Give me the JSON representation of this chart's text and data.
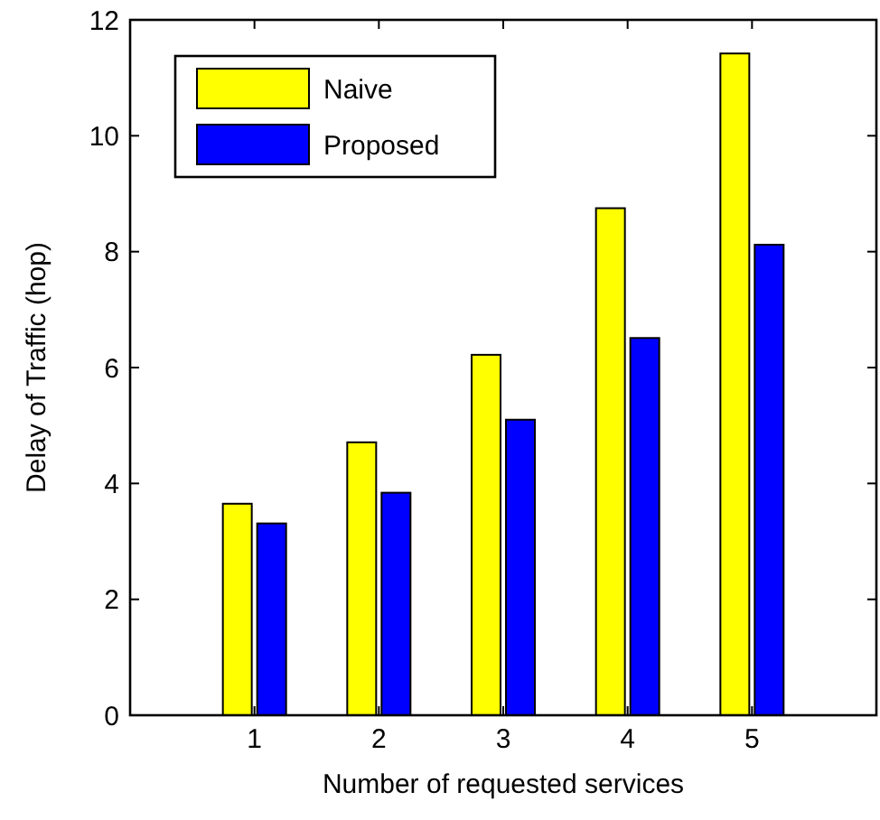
{
  "chart_data": {
    "type": "bar",
    "xlabel": "Number of requested services",
    "ylabel": "Delay of Traffic (hop)",
    "categories": [
      "1",
      "2",
      "3",
      "4",
      "5"
    ],
    "series": [
      {
        "name": "Naive",
        "color": "#ffff00",
        "values": [
          3.65,
          4.71,
          6.22,
          8.75,
          11.42
        ]
      },
      {
        "name": "Proposed",
        "color": "#0000ff",
        "values": [
          3.31,
          3.84,
          5.1,
          6.51,
          8.12
        ]
      }
    ],
    "ylim": [
      0,
      12
    ],
    "yticks": [
      0,
      2,
      4,
      6,
      8,
      10,
      12
    ],
    "grid": false,
    "legend": "top left"
  }
}
